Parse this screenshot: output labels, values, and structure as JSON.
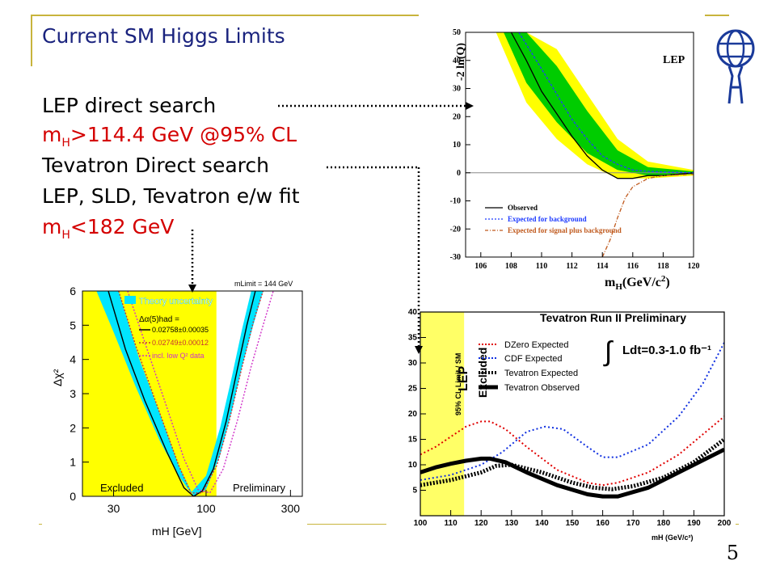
{
  "slide": {
    "title": "Current SM Higgs Limits",
    "line1": "LEP direct search",
    "line2_pre": "m",
    "line2_sub": "H",
    "line2_post": ">114.4 GeV @95% CL",
    "line3": "Tevatron Direct search",
    "line4": "LEP, SLD, Tevatron e/w fit",
    "line5_pre": "m",
    "line5_sub": "H",
    "line5_post": "<182 GeV",
    "page_number": "5",
    "colors": {
      "title": "#1a237e",
      "highlight": "#d40000",
      "decor": "#c8b43c"
    }
  },
  "chart_data": [
    {
      "type": "line",
      "panel": "LEP -2ln(Q)",
      "title": "LEP",
      "xlabel": "mH(GeV/c²)",
      "ylabel": "-2 ln(Q)",
      "xlim": [
        105,
        120
      ],
      "ylim": [
        -30,
        50
      ],
      "xticks": [
        "106",
        "108",
        "110",
        "112",
        "114",
        "116",
        "118",
        "120"
      ],
      "yticks": [
        "50",
        "40",
        "30",
        "20",
        "10",
        "0",
        "-10",
        "-20",
        "-30"
      ],
      "legend_position": "bottom-left",
      "legend": [
        "Observed",
        "Expected for background",
        "Expected for signal plus background"
      ],
      "series": [
        {
          "name": "Observed",
          "color": "#000000",
          "x": [
            108,
            109,
            110,
            111,
            112,
            113,
            114,
            115,
            116,
            117,
            118,
            120
          ],
          "y": [
            50,
            40,
            29,
            21,
            13,
            6,
            1,
            -2,
            -2,
            -1,
            -1,
            0
          ]
        },
        {
          "name": "Expected for background",
          "color": "#1f3cff",
          "x": [
            108.5,
            110,
            111,
            112,
            113,
            114,
            115,
            116,
            117,
            118,
            120
          ],
          "y": [
            50,
            37,
            28,
            19,
            12,
            6,
            3,
            1,
            0.5,
            0.3,
            0
          ]
        },
        {
          "name": "Expected for signal plus background",
          "color": "#c05a1e",
          "x": [
            114,
            114.5,
            115,
            115.5,
            116,
            117,
            118,
            120
          ],
          "y": [
            -30,
            -24,
            -16,
            -9,
            -5,
            -2,
            -1,
            -0.5
          ]
        }
      ],
      "bands": [
        {
          "name": "yellow",
          "color": "#ffff00",
          "upper_x": [
            107,
            109,
            111,
            113,
            115,
            117,
            120
          ],
          "upper_y": [
            50,
            50,
            44,
            28,
            12,
            4,
            1
          ],
          "lower_x": [
            107,
            109,
            111,
            113,
            115,
            117,
            120
          ],
          "lower_y": [
            50,
            25,
            12,
            3,
            -2,
            -2,
            -1
          ]
        },
        {
          "name": "green",
          "color": "#00cc00",
          "upper_x": [
            107.5,
            109,
            111,
            113,
            115,
            117,
            120
          ],
          "upper_y": [
            50,
            50,
            38,
            22,
            8,
            2,
            0.5
          ],
          "lower_x": [
            107.5,
            109,
            111,
            113,
            115,
            117,
            120
          ],
          "lower_y": [
            50,
            32,
            18,
            7,
            1,
            -1,
            -0.5
          ]
        }
      ]
    },
    {
      "type": "line",
      "panel": "Electroweak fit chi2",
      "xlabel": "mH [GeV]",
      "ylabel": "Δχ²",
      "x_scale": "log",
      "xlim": [
        20,
        350
      ],
      "ylim": [
        0,
        6
      ],
      "xticks": [
        "30",
        "100",
        "300"
      ],
      "yticks": [
        "0",
        "1",
        "2",
        "3",
        "4",
        "5",
        "6"
      ],
      "top_label": "mLimit = 144 GeV",
      "excluded_label": "Excluded",
      "preliminary_label": "Preliminary",
      "excluded_range": [
        20,
        114.4
      ],
      "legend": {
        "theory": "Theory uncertainty",
        "alpha": "Δα(5)had =",
        "entry1": "0.02758±0.00035",
        "entry2": "0.02749±0.00012",
        "entry3": "incl. low Q² data"
      },
      "series": [
        {
          "name": "0.02758±0.00035",
          "color": "#000000",
          "x": [
            28,
            35,
            45,
            60,
            75,
            85,
            95,
            110,
            130,
            150,
            170,
            190
          ],
          "y": [
            6,
            4.3,
            2.8,
            1.3,
            0.25,
            0,
            0.15,
            0.8,
            2.2,
            3.7,
            5.0,
            6
          ]
        },
        {
          "name": "0.02749±0.00012",
          "color": "#c83232",
          "x": [
            32,
            40,
            55,
            70,
            82,
            95,
            115,
            135,
            160,
            185,
            210
          ],
          "y": [
            6,
            4.4,
            2.4,
            0.9,
            0.1,
            0.1,
            0.9,
            2.2,
            3.8,
            5.1,
            6
          ]
        },
        {
          "name": "incl. low Q² data",
          "color": "#d030c8",
          "x": [
            36,
            45,
            60,
            75,
            90,
            105,
            125,
            150,
            180,
            210,
            240
          ],
          "y": [
            6,
            4.5,
            2.6,
            1.1,
            0.2,
            0.1,
            0.8,
            2.2,
            3.8,
            5.0,
            6
          ]
        }
      ],
      "theory_band": {
        "color": "#00e5ff",
        "upper_x": [
          24,
          30,
          40,
          55,
          70,
          82,
          100,
          120,
          140,
          160,
          180
        ],
        "upper_y": [
          6,
          4.8,
          3.2,
          1.6,
          0.6,
          0.1,
          0.6,
          2.0,
          3.5,
          4.9,
          6
        ],
        "lower_x": [
          32,
          42,
          55,
          70,
          85,
          100,
          120,
          140,
          160,
          185,
          210
        ],
        "lower_y": [
          6,
          4.0,
          2.4,
          0.9,
          0,
          0.2,
          1.2,
          2.5,
          3.8,
          5.0,
          6
        ]
      }
    },
    {
      "type": "line",
      "panel": "Tevatron Run II",
      "title": "Tevatron Run II Preliminary",
      "lumi_label": "Ldt=0.3-1.0 fb⁻¹",
      "integral_symbol": "∫",
      "xlabel": "mH (GeV/c²)",
      "ylabel": "95% CL Limit / SM",
      "xlim": [
        100,
        200
      ],
      "ylim": [
        0,
        40
      ],
      "xticks": [
        "100",
        "110",
        "120",
        "130",
        "140",
        "150",
        "160",
        "170",
        "180",
        "190",
        "200"
      ],
      "yticks": [
        "5",
        "10",
        "15",
        "20",
        "25",
        "30",
        "35",
        "40"
      ],
      "excluded_label_1": "LEP",
      "excluded_label_2": "Excluded",
      "excluded_range": [
        100,
        114.4
      ],
      "legend_position": "top-right",
      "series": [
        {
          "name": "DZero Expected",
          "color": "#e00000",
          "style": "dotted",
          "x": [
            100,
            105,
            110,
            115,
            120,
            123,
            128,
            135,
            145,
            155,
            160,
            165,
            175,
            185,
            200
          ],
          "y": [
            12,
            13.5,
            15.5,
            17.5,
            18.5,
            18.5,
            17,
            13.5,
            9,
            6.5,
            6,
            6.5,
            8.5,
            12,
            19.5
          ]
        },
        {
          "name": "CDF Expected",
          "color": "#1030e0",
          "style": "dotted",
          "x": [
            100,
            110,
            120,
            127,
            135,
            141,
            147,
            155,
            160,
            165,
            175,
            185,
            193,
            200
          ],
          "y": [
            7,
            8,
            10,
            12.5,
            16.5,
            17.5,
            17,
            13.5,
            11.5,
            11.5,
            14,
            19.5,
            26,
            34
          ]
        },
        {
          "name": "Tevatron Expected",
          "color": "#000000",
          "style": "thick-dotted",
          "x": [
            100,
            110,
            120,
            125,
            130,
            140,
            150,
            157,
            163,
            170,
            180,
            190,
            200
          ],
          "y": [
            6,
            7,
            8.5,
            9.8,
            10,
            8.5,
            6.5,
            5.5,
            5.2,
            5.8,
            7.5,
            10.5,
            15
          ]
        },
        {
          "name": "Tevatron Observed",
          "color": "#000000",
          "style": "solid-thick",
          "x": [
            100,
            105,
            110,
            115,
            120,
            123,
            128,
            135,
            145,
            155,
            160,
            165,
            175,
            185,
            200
          ],
          "y": [
            8.5,
            9.5,
            10.2,
            10.8,
            11.2,
            11.2,
            10.5,
            8.5,
            6,
            4.2,
            3.8,
            3.8,
            5.5,
            8.5,
            13
          ]
        }
      ]
    }
  ]
}
